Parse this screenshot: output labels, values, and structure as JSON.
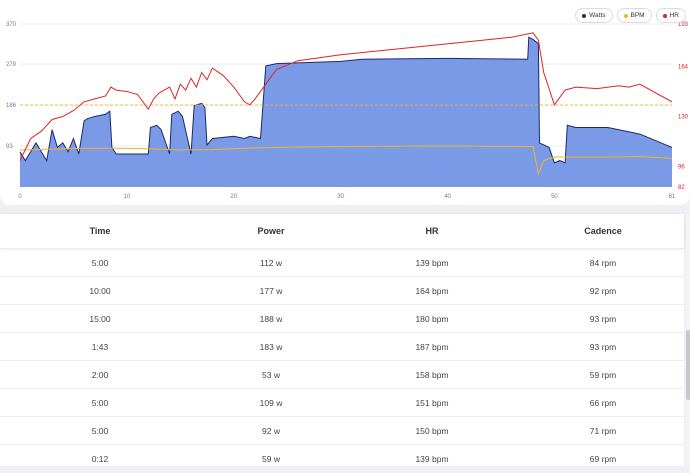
{
  "chart_data": {
    "type": "area",
    "xlim": [
      0,
      61
    ],
    "ylim_left": [
      0,
      370
    ],
    "ylim_right": [
      82,
      193
    ],
    "x_ticks": [
      "0",
      "10",
      "20",
      "30",
      "40",
      "50",
      "61"
    ],
    "y_ticks_left": [
      "93",
      "186",
      "279",
      "370"
    ],
    "y_ticks_right": [
      "96",
      "130",
      "164",
      "193"
    ],
    "bottom_right_label": "82",
    "reference_line_watts": 186,
    "legend": [
      {
        "label": "Watts",
        "color": "#1a2a6c"
      },
      {
        "label": "BPM",
        "color": "#f0b429"
      },
      {
        "label": "HR",
        "color": "#e02424"
      }
    ],
    "series": [
      {
        "name": "Watts",
        "color": "#1a2a6c",
        "fill": "#7a9ae8",
        "x": [
          0,
          0.5,
          1.5,
          2.5,
          3,
          3.5,
          4,
          4.5,
          5,
          5.5,
          6,
          6.3,
          7,
          8,
          8.4,
          8.6,
          9,
          10,
          12,
          12.2,
          12.8,
          13.2,
          14,
          14.2,
          14.8,
          15.2,
          16,
          16.3,
          17,
          17.3,
          17.5,
          18,
          20,
          21,
          21.5,
          22.5,
          23,
          24,
          30,
          32,
          40,
          47.5,
          47.6,
          48,
          48.5,
          48.6,
          49.5,
          50,
          50.5,
          51,
          51.2,
          52,
          55,
          58,
          61
        ],
        "y": [
          80,
          60,
          100,
          60,
          130,
          90,
          100,
          80,
          110,
          75,
          150,
          155,
          160,
          165,
          172,
          90,
          75,
          75,
          75,
          135,
          140,
          130,
          75,
          165,
          172,
          160,
          75,
          185,
          190,
          180,
          95,
          110,
          115,
          110,
          115,
          110,
          275,
          280,
          285,
          290,
          292,
          290,
          340,
          335,
          325,
          100,
          90,
          55,
          60,
          55,
          140,
          135,
          135,
          120,
          90
        ]
      },
      {
        "name": "BPM",
        "color": "#f0b429",
        "x": [
          0,
          3,
          6,
          9,
          12,
          15,
          18,
          21,
          24,
          30,
          40,
          48,
          48.5,
          49,
          50,
          51,
          55,
          58,
          61
        ],
        "y": [
          84,
          86,
          88,
          88,
          87,
          84,
          85,
          88,
          90,
          92,
          93,
          92,
          30,
          60,
          68,
          68,
          68,
          69,
          65
        ]
      },
      {
        "name": "HR",
        "color": "#e02424",
        "x": [
          0,
          1,
          2,
          3,
          4,
          5,
          6,
          7,
          8,
          8.5,
          9,
          10,
          11,
          12,
          12.5,
          13,
          13.5,
          14,
          14.5,
          15,
          15.5,
          16,
          16.5,
          17,
          17.5,
          18,
          19,
          20,
          21,
          21.5,
          22,
          23,
          24,
          26,
          28,
          30,
          34,
          38,
          42,
          46,
          48,
          48.5,
          49,
          50,
          51,
          52,
          54,
          56,
          57,
          58,
          59,
          60,
          61
        ],
        "y": [
          100,
          115,
          120,
          128,
          130,
          134,
          140,
          142,
          144,
          150,
          148,
          147,
          145,
          135,
          142,
          146,
          148,
          150,
          142,
          152,
          148,
          156,
          150,
          160,
          155,
          163,
          158,
          150,
          140,
          138,
          142,
          152,
          162,
          168,
          170,
          172,
          175,
          178,
          181,
          184,
          187,
          182,
          160,
          138,
          148,
          150,
          149,
          151,
          150,
          152,
          148,
          144,
          140
        ]
      }
    ]
  },
  "table": {
    "headers": {
      "time": "Time",
      "power": "Power",
      "hr": "HR",
      "cadence": "Cadence"
    },
    "rows": [
      {
        "time": "5:00",
        "power": "112 w",
        "hr": "139 bpm",
        "cadence": "84 rpm"
      },
      {
        "time": "10:00",
        "power": "177 w",
        "hr": "164 bpm",
        "cadence": "92 rpm"
      },
      {
        "time": "15:00",
        "power": "188 w",
        "hr": "180 bpm",
        "cadence": "93 rpm"
      },
      {
        "time": "1:43",
        "power": "183 w",
        "hr": "187 bpm",
        "cadence": "93 rpm"
      },
      {
        "time": "2:00",
        "power": "53 w",
        "hr": "158 bpm",
        "cadence": "59 rpm"
      },
      {
        "time": "5:00",
        "power": "109 w",
        "hr": "151 bpm",
        "cadence": "66 rpm"
      },
      {
        "time": "5:00",
        "power": "92 w",
        "hr": "150 bpm",
        "cadence": "71 rpm"
      },
      {
        "time": "0:12",
        "power": "59 w",
        "hr": "139 bpm",
        "cadence": "69 rpm"
      }
    ]
  }
}
